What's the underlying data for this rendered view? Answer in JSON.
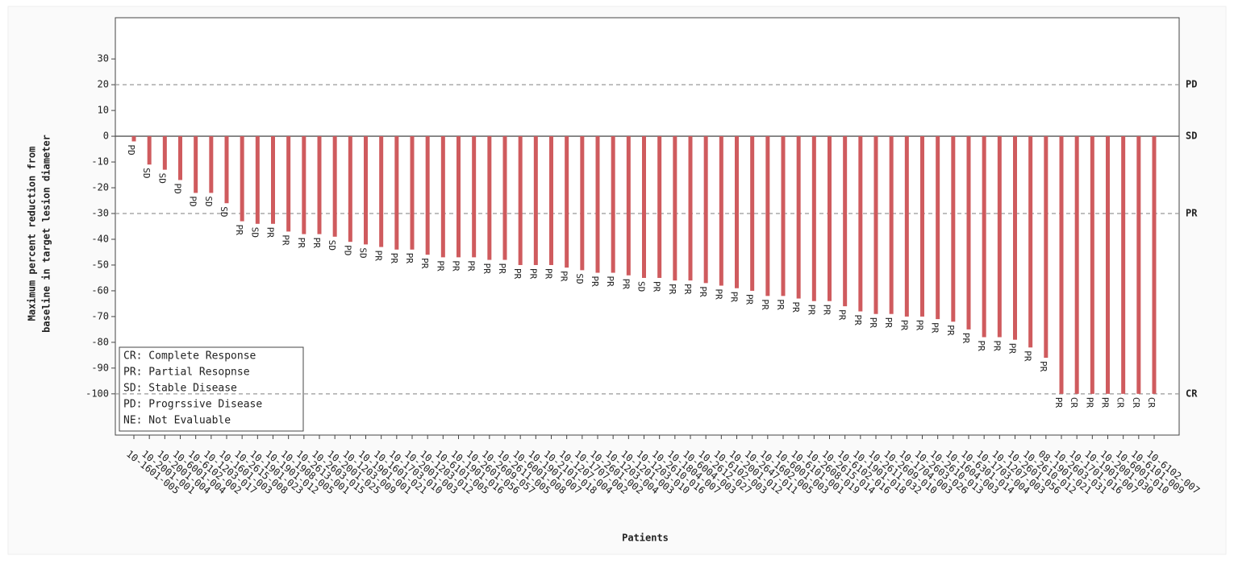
{
  "chart_data": {
    "type": "bar",
    "ylabel": [
      "Maximum percent reduction from",
      "baseline in target lesion diameter"
    ],
    "xlabel": "Patients",
    "color": "#cf5b5e",
    "ylim": [
      -116,
      46
    ],
    "yticks": [
      30,
      20,
      10,
      0,
      -10,
      -20,
      -30,
      -40,
      -50,
      -60,
      -70,
      -80,
      -90,
      -100
    ],
    "categories": [
      "10-1601-005",
      "10-2001-001",
      "10-2001-004",
      "10-6001-004",
      "10-6102-002",
      "10-1203-017",
      "10-1601-003",
      "10-2615-008",
      "10-1901-023",
      "10-1901-012",
      "10-1908-005",
      "10-2613-001",
      "10-2603-015",
      "10-2001-025",
      "10-1203-009",
      "10-1901-001",
      "10-1601-021",
      "10-1703-010",
      "10-2001-003",
      "10-1203-012",
      "10-6101-005",
      "10-1901-016",
      "10-2601-056",
      "10-2609-057",
      "10-2611-005",
      "10-6001-008",
      "10-1901-007",
      "10-2101-018",
      "10-1207-004",
      "10-1707-002",
      "10-2601-002",
      "10-1203-004",
      "10-1201-003",
      "10-1203-010",
      "10-2610-016",
      "10-1804-007",
      "10-6004-003",
      "10-2612-027",
      "10-6102-003",
      "10-2001-012",
      "10-2647-011",
      "10-1602-005",
      "10-6001-003",
      "10-6101-001",
      "10-2608-019",
      "10-2615-014",
      "10-6102-016",
      "10-1901-018",
      "10-2611-032",
      "10-2609-010",
      "10-1704-003",
      "10-2603-026",
      "10-2610-013",
      "10-1604-003",
      "10-6301-014",
      "10-1703-004",
      "10-1207-003",
      "10-2601-056",
      "10-2610-012",
      "08-1901-021",
      "10-2603-031",
      "10-1701-016",
      "10-1901-007",
      "10-2001-030",
      "10-6001-010",
      "10-6101-009",
      "10-6102-007"
    ],
    "values": [
      -2,
      -11,
      -13,
      -17,
      -22,
      -22,
      -26,
      -33,
      -34,
      -34,
      -37,
      -38,
      -38,
      -39,
      -41,
      -42,
      -43,
      -44,
      -44,
      -46,
      -47,
      -47,
      -47,
      -48,
      -48,
      -50,
      -50,
      -50,
      -51,
      -52,
      -53,
      -53,
      -54,
      -55,
      -55,
      -56,
      -56,
      -57,
      -58,
      -59,
      -60,
      -62,
      -62,
      -63,
      -64,
      -64,
      -66,
      -68,
      -69,
      -69,
      -70,
      -70,
      -71,
      -72,
      -75,
      -78,
      -78,
      -79,
      -82,
      -86,
      -100,
      -100,
      -100,
      -100,
      -100,
      -100,
      -100
    ],
    "responses": [
      "PD",
      "SD",
      "SD",
      "PD",
      "PD",
      "SD",
      "SD",
      "PR",
      "SD",
      "PR",
      "PR",
      "PR",
      "PR",
      "SD",
      "PD",
      "SD",
      "PR",
      "PR",
      "PR",
      "PR",
      "PR",
      "PR",
      "PR",
      "PR",
      "PR",
      "PR",
      "PR",
      "PR",
      "PR",
      "SD",
      "PR",
      "PR",
      "PR",
      "SD",
      "PR",
      "PR",
      "PR",
      "PR",
      "PR",
      "PR",
      "PR",
      "PR",
      "PR",
      "PR",
      "PR",
      "PR",
      "PR",
      "PR",
      "PR",
      "PR",
      "PR",
      "PR",
      "PR",
      "PR",
      "PR",
      "PR",
      "PR",
      "PR",
      "PR",
      "PR",
      "PR",
      "CR",
      "PR",
      "PR",
      "CR",
      "CR",
      "CR"
    ],
    "reference_lines": [
      {
        "value": 20,
        "label": "PD"
      },
      {
        "value": 0,
        "label": "SD"
      },
      {
        "value": -30,
        "label": "PR"
      },
      {
        "value": -100,
        "label": "CR"
      }
    ],
    "legend_text": [
      "CR: Complete Response",
      "PR: Partial Resopnse",
      "SD: Stable Disease",
      "PD: Progrssive Disease",
      "NE: Not Evaluable"
    ]
  }
}
